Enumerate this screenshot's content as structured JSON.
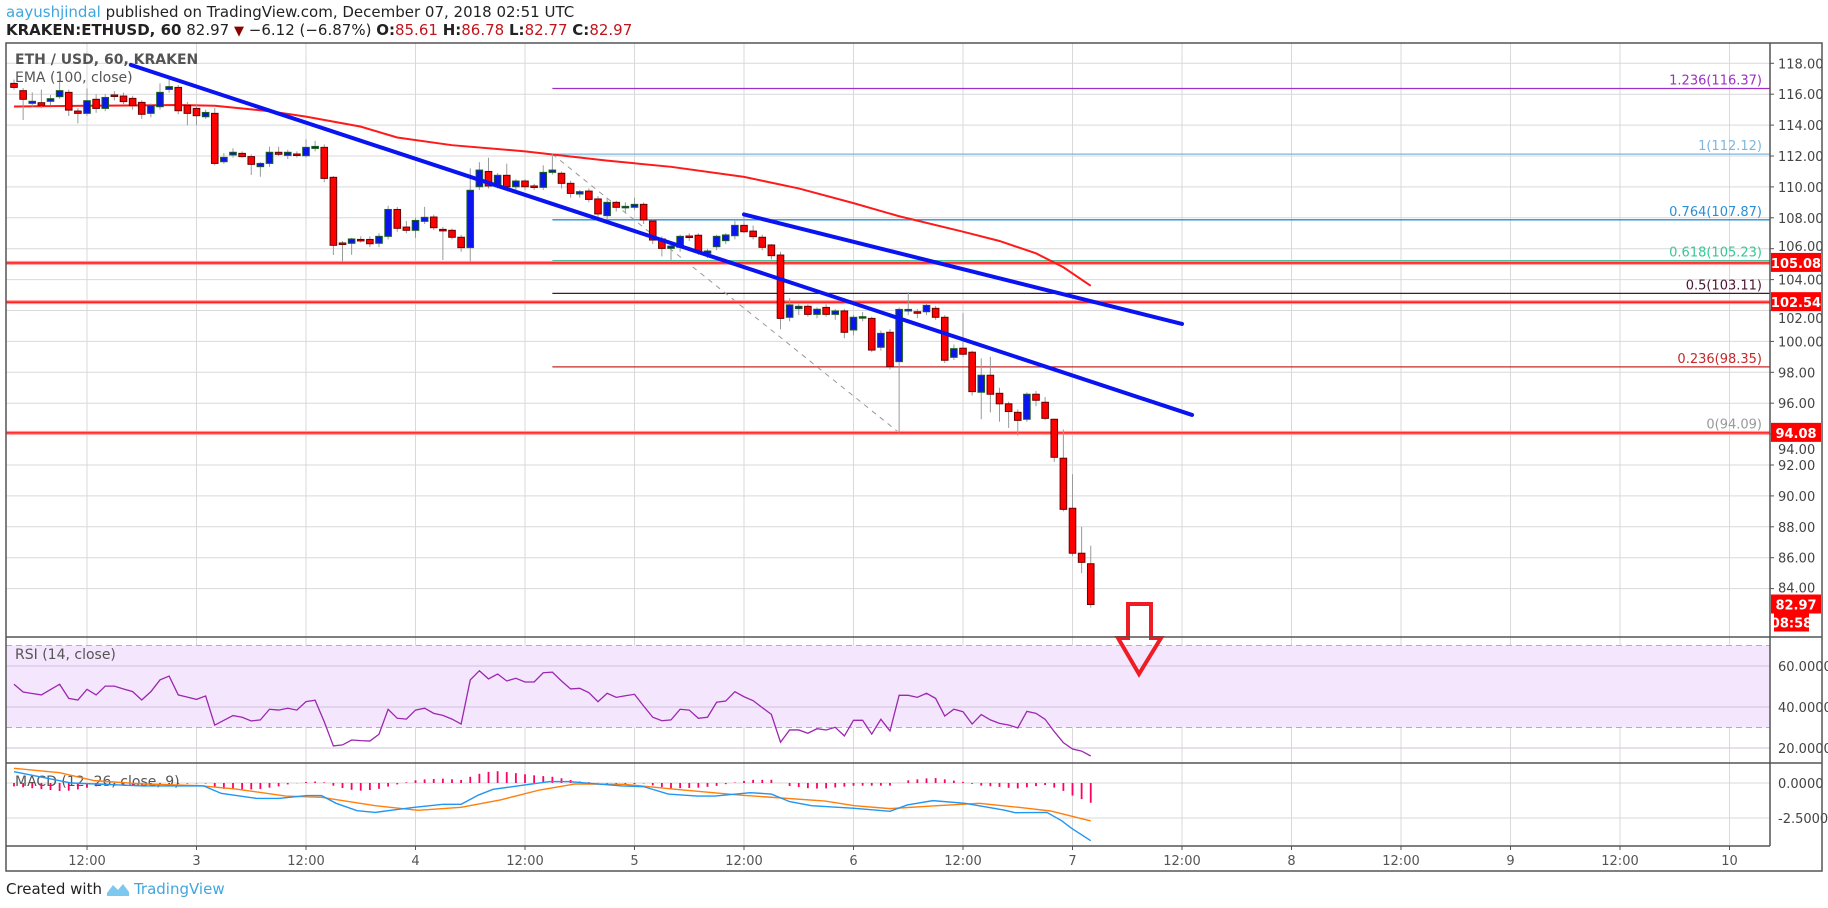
{
  "header": {
    "author": "aayushjindal",
    "published": " published on TradingView.com, December 07, 2018 02:51 UTC",
    "symbol": "KRAKEN:ETHUSD, 60",
    "last": "82.97",
    "change": "−6.12 (−6.87%)",
    "o_label": "O:",
    "o": "85.61",
    "h_label": "H:",
    "h": "86.78",
    "l_label": "L:",
    "l": "82.77",
    "c_label": "C:",
    "c": "82.97"
  },
  "footer": {
    "created_with": "Created with",
    "brand": "TradingView"
  },
  "colors": {
    "bull": "#0a14f0",
    "bull_border": "#1b5e20",
    "bear": "#ff0000",
    "bear_border": "#6b0000",
    "ema": "#ff1a1a",
    "trendline": "#0a14f0",
    "support": "#ff2020",
    "rsi": "#9c27b0",
    "macd": "#2196f3",
    "signal": "#ff7f0e",
    "hist": "#ff0066",
    "arrow": "#ee1c25"
  },
  "chart_data": {
    "type": "candlestick",
    "title": "ETH / USD, 60, KRAKEN",
    "ema_label": "EMA (100, close)",
    "hour_index_note": "hours relative to Dec 2 12:00",
    "first_hour": -8,
    "candles": [
      [
        116.7,
        116.95,
        116.3,
        116.44
      ],
      [
        116.23,
        116.4,
        114.33,
        115.67
      ],
      [
        115.41,
        116.12,
        115.19,
        115.54
      ],
      [
        115.45,
        116.3,
        115.1,
        115.28
      ],
      [
        115.54,
        115.95,
        115.3,
        115.71
      ],
      [
        115.84,
        116.8,
        115.7,
        116.23
      ],
      [
        116.12,
        116.3,
        114.59,
        114.97
      ],
      [
        114.91,
        115.1,
        114.11,
        114.76
      ],
      [
        114.76,
        116.38,
        114.6,
        115.58
      ],
      [
        115.67,
        116.0,
        114.8,
        115.08
      ],
      [
        115.08,
        116.0,
        114.9,
        115.79
      ],
      [
        115.95,
        116.2,
        115.6,
        115.86
      ],
      [
        115.88,
        116.1,
        115.3,
        115.52
      ],
      [
        115.73,
        115.9,
        115.0,
        115.26
      ],
      [
        115.47,
        115.6,
        114.4,
        114.7
      ],
      [
        114.76,
        115.4,
        114.5,
        115.26
      ],
      [
        115.19,
        116.7,
        115.0,
        116.12
      ],
      [
        116.31,
        117.18,
        116.1,
        116.49
      ],
      [
        116.44,
        116.6,
        114.7,
        114.93
      ],
      [
        115.28,
        115.5,
        113.98,
        114.76
      ],
      [
        115.08,
        115.3,
        114.0,
        114.61
      ],
      [
        114.54,
        115.0,
        114.4,
        114.82
      ],
      [
        114.76,
        115.1,
        111.4,
        111.52
      ],
      [
        111.63,
        112.2,
        111.5,
        111.91
      ],
      [
        112.07,
        112.5,
        111.9,
        112.24
      ],
      [
        112.17,
        112.3,
        111.9,
        111.96
      ],
      [
        111.96,
        112.1,
        110.77,
        111.46
      ],
      [
        111.31,
        111.6,
        110.66,
        111.52
      ],
      [
        111.52,
        112.6,
        111.3,
        112.24
      ],
      [
        112.24,
        112.6,
        112.0,
        112.11
      ],
      [
        112.04,
        112.4,
        111.8,
        112.24
      ],
      [
        112.13,
        112.3,
        111.9,
        112.04
      ],
      [
        112.02,
        113.08,
        111.9,
        112.56
      ],
      [
        112.49,
        112.98,
        112.3,
        112.62
      ],
      [
        112.56,
        112.75,
        110.3,
        110.55
      ],
      [
        110.62,
        110.7,
        105.59,
        106.22
      ],
      [
        106.37,
        106.5,
        105.16,
        106.28
      ],
      [
        106.35,
        106.7,
        105.6,
        106.63
      ],
      [
        106.6,
        106.8,
        106.4,
        106.56
      ],
      [
        106.6,
        106.8,
        106.1,
        106.32
      ],
      [
        106.35,
        107.0,
        106.1,
        106.8
      ],
      [
        106.8,
        108.78,
        106.6,
        108.54
      ],
      [
        108.54,
        108.7,
        107.1,
        107.32
      ],
      [
        107.4,
        107.8,
        107.0,
        107.19
      ],
      [
        107.19,
        108.0,
        106.7,
        107.83
      ],
      [
        107.77,
        108.71,
        107.6,
        108.03
      ],
      [
        108.05,
        108.2,
        107.2,
        107.36
      ],
      [
        107.25,
        107.4,
        105.27,
        107.17
      ],
      [
        107.19,
        107.3,
        106.6,
        106.74
      ],
      [
        106.74,
        106.9,
        105.8,
        106.07
      ],
      [
        106.07,
        111.2,
        105.16,
        109.78
      ],
      [
        110.01,
        111.6,
        109.8,
        111.09
      ],
      [
        111.0,
        111.89,
        109.9,
        110.06
      ],
      [
        110.14,
        110.9,
        109.9,
        110.75
      ],
      [
        110.75,
        111.5,
        109.8,
        110.01
      ],
      [
        110.01,
        110.5,
        109.8,
        110.38
      ],
      [
        110.38,
        110.5,
        109.8,
        110.01
      ],
      [
        110.06,
        110.2,
        109.8,
        109.97
      ],
      [
        109.97,
        111.4,
        109.8,
        110.94
      ],
      [
        110.94,
        112.17,
        110.8,
        111.09
      ],
      [
        110.88,
        111.0,
        109.9,
        110.23
      ],
      [
        110.23,
        110.4,
        109.3,
        109.58
      ],
      [
        109.54,
        109.8,
        109.3,
        109.69
      ],
      [
        109.73,
        109.9,
        109.0,
        109.19
      ],
      [
        109.22,
        109.4,
        107.9,
        108.25
      ],
      [
        108.14,
        109.3,
        107.9,
        109.0
      ],
      [
        109.0,
        109.1,
        108.4,
        108.68
      ],
      [
        108.66,
        109.0,
        108.3,
        108.74
      ],
      [
        108.68,
        109.3,
        108.5,
        108.87
      ],
      [
        108.87,
        109.0,
        107.6,
        107.86
      ],
      [
        107.79,
        107.9,
        106.3,
        106.56
      ],
      [
        106.63,
        106.8,
        105.5,
        106.02
      ],
      [
        106.02,
        106.3,
        105.2,
        106.17
      ],
      [
        106.09,
        106.9,
        105.8,
        106.8
      ],
      [
        106.82,
        107.0,
        106.5,
        106.74
      ],
      [
        106.87,
        107.0,
        105.6,
        105.81
      ],
      [
        105.7,
        106.0,
        105.4,
        105.85
      ],
      [
        106.13,
        106.9,
        105.9,
        106.8
      ],
      [
        106.52,
        107.0,
        106.3,
        106.89
      ],
      [
        106.84,
        107.8,
        106.6,
        107.51
      ],
      [
        107.51,
        108.29,
        107.0,
        107.1
      ],
      [
        107.14,
        107.5,
        106.6,
        106.78
      ],
      [
        106.74,
        106.9,
        105.9,
        106.09
      ],
      [
        106.24,
        106.3,
        105.3,
        105.55
      ],
      [
        105.59,
        105.8,
        100.78,
        101.49
      ],
      [
        101.56,
        102.8,
        101.3,
        102.36
      ],
      [
        102.12,
        102.4,
        101.7,
        102.27
      ],
      [
        102.27,
        102.4,
        101.6,
        101.75
      ],
      [
        101.75,
        102.2,
        101.5,
        102.08
      ],
      [
        102.2,
        102.4,
        101.6,
        101.75
      ],
      [
        101.75,
        102.1,
        101.4,
        101.97
      ],
      [
        101.97,
        102.1,
        100.2,
        100.59
      ],
      [
        100.74,
        101.7,
        100.4,
        101.56
      ],
      [
        101.54,
        101.9,
        101.3,
        101.6
      ],
      [
        101.49,
        101.6,
        99.3,
        99.44
      ],
      [
        99.62,
        100.7,
        99.4,
        100.52
      ],
      [
        100.59,
        100.8,
        98.2,
        98.36
      ],
      [
        98.69,
        102.2,
        94.09,
        102.07
      ],
      [
        101.97,
        103.2,
        101.7,
        102.07
      ],
      [
        101.92,
        102.1,
        101.5,
        101.9
      ],
      [
        101.92,
        102.5,
        101.7,
        102.33
      ],
      [
        102.14,
        102.3,
        101.4,
        101.56
      ],
      [
        101.56,
        101.7,
        98.6,
        98.78
      ],
      [
        98.97,
        99.8,
        98.8,
        99.53
      ],
      [
        99.56,
        101.82,
        99.0,
        99.17
      ],
      [
        99.3,
        99.4,
        96.5,
        96.75
      ],
      [
        96.71,
        98.9,
        94.96,
        97.81
      ],
      [
        97.81,
        99.0,
        95.4,
        96.58
      ],
      [
        96.64,
        97.0,
        94.8,
        95.96
      ],
      [
        95.96,
        96.1,
        94.4,
        95.46
      ],
      [
        95.41,
        95.6,
        93.9,
        94.89
      ],
      [
        94.96,
        96.7,
        94.8,
        96.58
      ],
      [
        96.58,
        96.8,
        95.8,
        96.19
      ],
      [
        96.06,
        96.4,
        94.9,
        95.02
      ],
      [
        94.96,
        95.0,
        92.2,
        92.5
      ],
      [
        92.44,
        94.3,
        89.0,
        89.13
      ],
      [
        89.2,
        91.4,
        86.1,
        86.29
      ],
      [
        86.29,
        88.0,
        85.0,
        85.7
      ],
      [
        85.61,
        86.78,
        82.77,
        82.97
      ]
    ],
    "ema": [
      [
        -8,
        115.2
      ],
      [
        0,
        115.25
      ],
      [
        10,
        115.3
      ],
      [
        14,
        115.25
      ],
      [
        20,
        114.9
      ],
      [
        24,
        114.55
      ],
      [
        30,
        113.9
      ],
      [
        34,
        113.2
      ],
      [
        40,
        112.7
      ],
      [
        48,
        112.3
      ],
      [
        57,
        111.7
      ],
      [
        64,
        111.3
      ],
      [
        72,
        110.65
      ],
      [
        78,
        109.9
      ],
      [
        84,
        108.95
      ],
      [
        89,
        108.1
      ],
      [
        96,
        107.1
      ],
      [
        100,
        106.5
      ],
      [
        104,
        105.7
      ],
      [
        107,
        104.8
      ],
      [
        110,
        103.6
      ]
    ],
    "trendlines": [
      {
        "from": [
          4.8,
          117.9
        ],
        "to": [
          121.1,
          95.24
        ]
      },
      {
        "from": [
          72,
          108.22
        ],
        "to": [
          120,
          101.13
        ]
      }
    ],
    "horizontal_levels": [
      {
        "price": 105.08,
        "label": "105.08"
      },
      {
        "price": 102.54,
        "label": "102.54"
      },
      {
        "price": 94.08,
        "label": "94.08"
      }
    ],
    "fib": {
      "start_hour": 51,
      "diagonal": {
        "from": [
          51,
          112.12
        ],
        "to": [
          89,
          94.09
        ]
      },
      "levels": [
        {
          "price": 116.37,
          "label": "1.236(116.37)",
          "color": "#9b30c8"
        },
        {
          "price": 112.12,
          "label": "1(112.12)",
          "color": "#7fb6de"
        },
        {
          "price": 107.87,
          "label": "0.764(107.87)",
          "color": "#2a8fd6"
        },
        {
          "price": 105.23,
          "label": "0.618(105.23)",
          "color": "#34c896"
        },
        {
          "price": 103.11,
          "label": "0.5(103.11)",
          "color": "#4a1434"
        },
        {
          "price": 98.35,
          "label": "0.236(98.35)",
          "color": "#c62828"
        },
        {
          "price": 94.09,
          "label": "0(94.09)",
          "color": "#999999"
        }
      ]
    },
    "price_axis": {
      "ticks": [
        "118.00",
        "116.00",
        "114.00",
        "112.00",
        "110.00",
        "108.00",
        "106.00",
        "104.00",
        "102.00",
        "100.00",
        "98.00",
        "96.00",
        "94.00",
        "92.00",
        "90.00",
        "88.00",
        "86.00",
        "84.00"
      ],
      "ylim": [
        81.5,
        119.2
      ]
    },
    "last_price_label": "82.97",
    "countdown_label": "08:58",
    "time_axis": [
      "12:00",
      "3",
      "12:00",
      "4",
      "12:00",
      "5",
      "12:00",
      "6",
      "12:00",
      "7",
      "12:00",
      "8",
      "12:00",
      "9",
      "12:00",
      "10"
    ],
    "rsi": {
      "label": "RSI (14, close)",
      "ticks": [
        "60.0000",
        "40.0000",
        "20.0000"
      ],
      "bands": [
        70,
        30
      ],
      "values": [
        51.1,
        47.3,
        46.6,
        45.9,
        48.5,
        51.1,
        44.2,
        43.4,
        48.6,
        45.9,
        50.2,
        50.2,
        48.8,
        47.5,
        43.4,
        47.5,
        53.2,
        55.1,
        45.9,
        44.8,
        43.7,
        45.4,
        31.2,
        33.5,
        35.8,
        35.0,
        33.2,
        33.7,
        38.9,
        38.5,
        39.4,
        38.5,
        42.6,
        43.3,
        32.8,
        21.0,
        21.5,
        23.9,
        23.6,
        23.4,
        26.7,
        38.9,
        34.5,
        34.1,
        38.5,
        39.4,
        36.9,
        35.9,
        34.1,
        31.7,
        53.2,
        57.7,
        53.7,
        56.1,
        52.7,
        54.0,
        52.2,
        52.2,
        56.7,
        57.0,
        52.7,
        48.8,
        49.1,
        47.0,
        42.6,
        46.7,
        44.7,
        45.5,
        46.2,
        40.5,
        35.0,
        33.3,
        33.7,
        38.9,
        38.5,
        34.5,
        35.0,
        42.3,
        42.9,
        47.5,
        45.0,
        43.1,
        39.7,
        36.4,
        22.8,
        28.8,
        28.8,
        27.2,
        29.4,
        28.8,
        30.1,
        25.9,
        33.5,
        33.5,
        26.8,
        34.0,
        28.3,
        45.7,
        45.7,
        44.7,
        46.7,
        44.2,
        35.6,
        38.9,
        37.7,
        31.7,
        36.3,
        33.7,
        32.0,
        31.2,
        29.8,
        37.9,
        36.9,
        34.0,
        28.0,
        22.6,
        19.5,
        18.5,
        16.1
      ]
    },
    "macd": {
      "label": "MACD (12, 26, close, 9)",
      "ticks": [
        "0.0000",
        "-2.5000"
      ],
      "macd": [
        [
          -8,
          0.81
        ],
        [
          -1.7,
          0
        ],
        [
          6.1,
          -0.21
        ],
        [
          12.8,
          -0.21
        ],
        [
          14.7,
          -0.74
        ],
        [
          18.6,
          -1.1
        ],
        [
          21,
          -1.1
        ],
        [
          24.1,
          -0.9
        ],
        [
          25.7,
          -0.9
        ],
        [
          27.3,
          -1.45
        ],
        [
          29.6,
          -1.98
        ],
        [
          31.6,
          -2.1
        ],
        [
          33.5,
          -1.93
        ],
        [
          35.9,
          -1.74
        ],
        [
          39,
          -1.52
        ],
        [
          41,
          -1.52
        ],
        [
          42.9,
          -0.86
        ],
        [
          44.5,
          -0.45
        ],
        [
          48,
          -0.14
        ],
        [
          50.7,
          0.1
        ],
        [
          52.8,
          0.1
        ],
        [
          58.6,
          -0.21
        ],
        [
          61,
          -0.26
        ],
        [
          63.7,
          -0.79
        ],
        [
          66.9,
          -0.93
        ],
        [
          68.8,
          -0.93
        ],
        [
          72.7,
          -0.69
        ],
        [
          75,
          -0.79
        ],
        [
          77,
          -1.33
        ],
        [
          79.4,
          -1.62
        ],
        [
          84.1,
          -1.81
        ],
        [
          88,
          -2.02
        ],
        [
          89.9,
          -1.57
        ],
        [
          92.7,
          -1.26
        ],
        [
          96.2,
          -1.45
        ],
        [
          100.5,
          -1.93
        ],
        [
          101.7,
          -2.12
        ],
        [
          105.2,
          -2.1
        ],
        [
          106.8,
          -2.69
        ],
        [
          107.9,
          -3.24
        ],
        [
          110,
          -4.12
        ]
      ],
      "signal": [
        [
          -8,
          1.05
        ],
        [
          -3,
          0.74
        ],
        [
          0.8,
          0.17
        ],
        [
          6.1,
          -0.07
        ],
        [
          12.4,
          -0.19
        ],
        [
          16.3,
          -0.43
        ],
        [
          21.8,
          -0.93
        ],
        [
          25.7,
          -1.02
        ],
        [
          31.6,
          -1.62
        ],
        [
          36.3,
          -1.95
        ],
        [
          41,
          -1.74
        ],
        [
          45.3,
          -1.21
        ],
        [
          49.6,
          -0.5
        ],
        [
          53.5,
          -0.07
        ],
        [
          59,
          -0.1
        ],
        [
          64.5,
          -0.45
        ],
        [
          71.5,
          -0.86
        ],
        [
          80.9,
          -1.29
        ],
        [
          84.1,
          -1.62
        ],
        [
          88,
          -1.83
        ],
        [
          92.7,
          -1.64
        ],
        [
          97.8,
          -1.45
        ],
        [
          102.1,
          -1.74
        ],
        [
          105.6,
          -2.0
        ],
        [
          110,
          -2.71
        ]
      ]
    }
  }
}
